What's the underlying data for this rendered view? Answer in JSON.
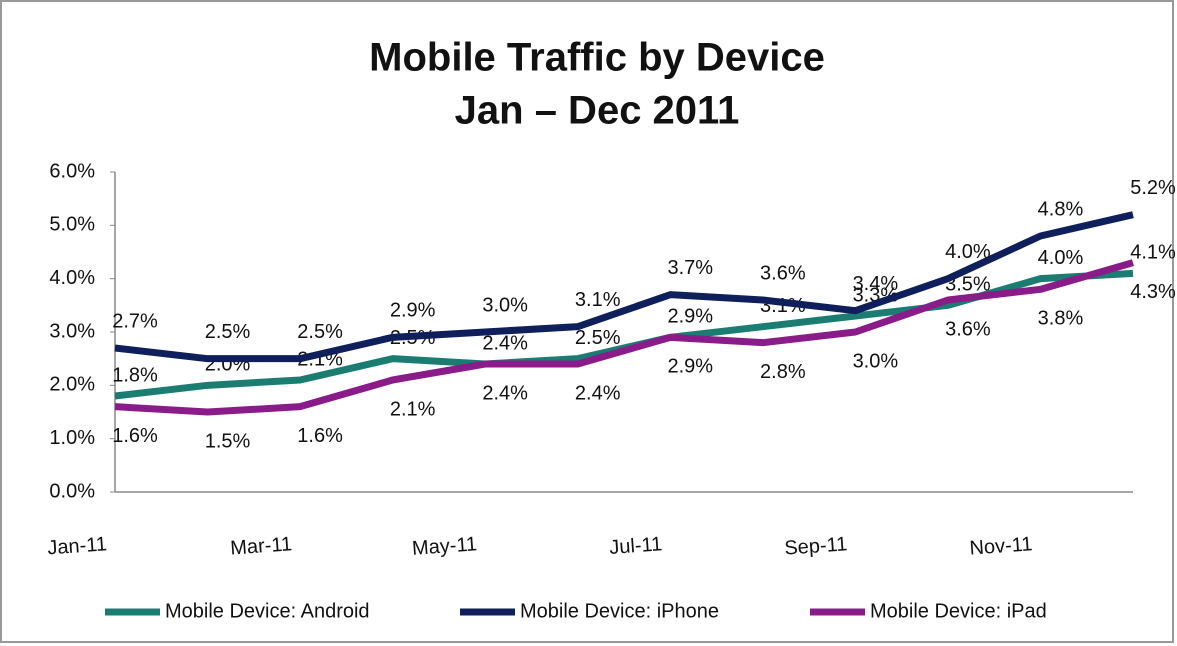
{
  "chart_data": {
    "type": "line",
    "title": "Mobile Traffic by Device",
    "subtitle": "Jan – Dec 2011",
    "categories": [
      "Jan-11",
      null,
      "Mar-11",
      null,
      "May-11",
      null,
      "Jul-11",
      null,
      "Sep-11",
      null,
      "Nov-11",
      null
    ],
    "series": [
      {
        "name": "Mobile Device: Android",
        "color": "#1b7d72",
        "values": [
          1.8,
          2.0,
          2.1,
          2.5,
          2.4,
          2.5,
          2.9,
          3.1,
          3.3,
          3.5,
          4.0,
          4.1
        ],
        "value_labels": [
          "1.8%",
          "2.0%",
          "2.1%",
          "2.5%",
          "2.4%",
          "2.5%",
          "2.9%",
          "3.1%",
          "3.3%",
          "3.5%",
          "4.0%",
          "4.1%"
        ]
      },
      {
        "name": "Mobile Device: iPhone",
        "color": "#0e1f5b",
        "values": [
          2.7,
          2.5,
          2.5,
          2.9,
          3.0,
          3.1,
          3.7,
          3.6,
          3.4,
          4.0,
          4.8,
          5.2
        ],
        "value_labels": [
          "2.7%",
          "2.5%",
          "2.5%",
          "2.9%",
          "3.0%",
          "3.1%",
          "3.7%",
          "3.6%",
          "3.4%",
          "4.0%",
          "4.8%",
          "5.2%"
        ]
      },
      {
        "name": "Mobile Device: iPad",
        "color": "#8a1c8a",
        "values": [
          1.6,
          1.5,
          1.6,
          2.1,
          2.4,
          2.4,
          2.9,
          2.8,
          3.0,
          3.6,
          3.8,
          4.3
        ],
        "value_labels": [
          "1.6%",
          "1.5%",
          "1.6%",
          "2.1%",
          "2.4%",
          "2.4%",
          "2.9%",
          "2.8%",
          "3.0%",
          "3.6%",
          "3.8%",
          "4.3%"
        ]
      }
    ],
    "ylim": [
      0,
      6
    ],
    "yticks": [
      {
        "value": 0,
        "label": "0.0%"
      },
      {
        "value": 1,
        "label": "1.0%"
      },
      {
        "value": 2,
        "label": "2.0%"
      },
      {
        "value": 3,
        "label": "3.0%"
      },
      {
        "value": 4,
        "label": "4.0%"
      },
      {
        "value": 5,
        "label": "5.0%"
      },
      {
        "value": 6,
        "label": "6.0%"
      }
    ],
    "legend": "bottom"
  }
}
